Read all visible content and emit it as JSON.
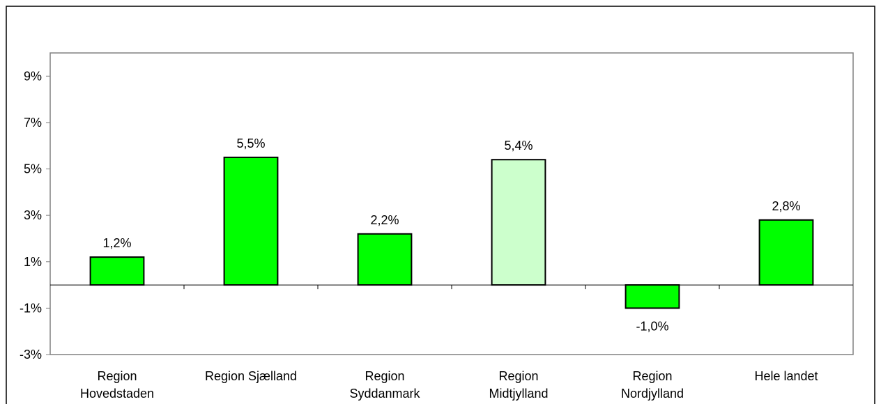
{
  "chart_data": {
    "type": "bar",
    "categories": [
      [
        "Region",
        "Hovedstaden"
      ],
      [
        "Region Sjælland"
      ],
      [
        "Region",
        "Syddanmark"
      ],
      [
        "Region",
        "Midtjylland"
      ],
      [
        "Region",
        "Nordjylland"
      ],
      [
        "Hele landet"
      ]
    ],
    "values": [
      1.2,
      5.5,
      2.2,
      5.4,
      -1.0,
      2.8
    ],
    "data_labels": [
      "1,2%",
      "5,5%",
      "2,2%",
      "5,4%",
      "-1,0%",
      "2,8%"
    ],
    "y_ticks": [
      9,
      7,
      5,
      3,
      1,
      -1,
      -3
    ],
    "y_tick_labels": [
      "9%",
      "7%",
      "5%",
      "3%",
      "1%",
      "-1%",
      "-3%"
    ],
    "ylim": [
      -3,
      10
    ],
    "grid": false,
    "colors": {
      "bar": "#00FF00",
      "bar_highlight": "#CCFFCC",
      "bar_border": "#000000",
      "plot_border": "#808080",
      "zero_line": "#000000"
    },
    "highlight_index": 3
  }
}
